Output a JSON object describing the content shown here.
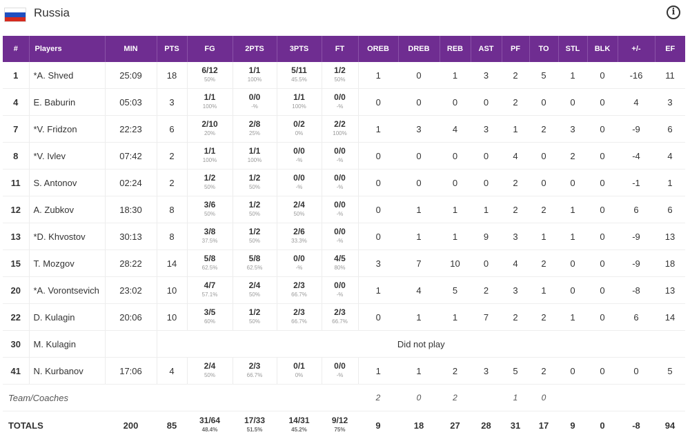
{
  "team": {
    "name": "Russia",
    "flag_colors": [
      "#ffffff",
      "#1f4fc1",
      "#d52b1e"
    ]
  },
  "info_icon": "info-icon",
  "accent_color": "#6f2d91",
  "headers": [
    "#",
    "Players",
    "MIN",
    "PTS",
    "FG",
    "2PTS",
    "3PTS",
    "FT",
    "OREB",
    "DREB",
    "REB",
    "AST",
    "PF",
    "TO",
    "STL",
    "BLK",
    "+/-",
    "EF"
  ],
  "players": [
    {
      "num": "1",
      "name": "*A. Shved",
      "min": "25:09",
      "pts": "18",
      "fg": "6/12",
      "fg_pct": "50%",
      "p2": "1/1",
      "p2_pct": "100%",
      "p3": "5/11",
      "p3_pct": "45.5%",
      "ft": "1/2",
      "ft_pct": "50%",
      "oreb": "1",
      "dreb": "0",
      "reb": "1",
      "ast": "3",
      "pf": "2",
      "to": "5",
      "stl": "1",
      "blk": "0",
      "pm": "-16",
      "ef": "11"
    },
    {
      "num": "4",
      "name": "E. Baburin",
      "min": "05:03",
      "pts": "3",
      "fg": "1/1",
      "fg_pct": "100%",
      "p2": "0/0",
      "p2_pct": "-%",
      "p3": "1/1",
      "p3_pct": "100%",
      "ft": "0/0",
      "ft_pct": "-%",
      "oreb": "0",
      "dreb": "0",
      "reb": "0",
      "ast": "0",
      "pf": "2",
      "to": "0",
      "stl": "0",
      "blk": "0",
      "pm": "4",
      "ef": "3"
    },
    {
      "num": "7",
      "name": "*V. Fridzon",
      "min": "22:23",
      "pts": "6",
      "fg": "2/10",
      "fg_pct": "20%",
      "p2": "2/8",
      "p2_pct": "25%",
      "p3": "0/2",
      "p3_pct": "0%",
      "ft": "2/2",
      "ft_pct": "100%",
      "oreb": "1",
      "dreb": "3",
      "reb": "4",
      "ast": "3",
      "pf": "1",
      "to": "2",
      "stl": "3",
      "blk": "0",
      "pm": "-9",
      "ef": "6"
    },
    {
      "num": "8",
      "name": "*V. Ivlev",
      "min": "07:42",
      "pts": "2",
      "fg": "1/1",
      "fg_pct": "100%",
      "p2": "1/1",
      "p2_pct": "100%",
      "p3": "0/0",
      "p3_pct": "-%",
      "ft": "0/0",
      "ft_pct": "-%",
      "oreb": "0",
      "dreb": "0",
      "reb": "0",
      "ast": "0",
      "pf": "4",
      "to": "0",
      "stl": "2",
      "blk": "0",
      "pm": "-4",
      "ef": "4"
    },
    {
      "num": "11",
      "name": "S. Antonov",
      "min": "02:24",
      "pts": "2",
      "fg": "1/2",
      "fg_pct": "50%",
      "p2": "1/2",
      "p2_pct": "50%",
      "p3": "0/0",
      "p3_pct": "-%",
      "ft": "0/0",
      "ft_pct": "-%",
      "oreb": "0",
      "dreb": "0",
      "reb": "0",
      "ast": "0",
      "pf": "2",
      "to": "0",
      "stl": "0",
      "blk": "0",
      "pm": "-1",
      "ef": "1"
    },
    {
      "num": "12",
      "name": "A. Zubkov",
      "min": "18:30",
      "pts": "8",
      "fg": "3/6",
      "fg_pct": "50%",
      "p2": "1/2",
      "p2_pct": "50%",
      "p3": "2/4",
      "p3_pct": "50%",
      "ft": "0/0",
      "ft_pct": "-%",
      "oreb": "0",
      "dreb": "1",
      "reb": "1",
      "ast": "1",
      "pf": "2",
      "to": "2",
      "stl": "1",
      "blk": "0",
      "pm": "6",
      "ef": "6"
    },
    {
      "num": "13",
      "name": "*D. Khvostov",
      "min": "30:13",
      "pts": "8",
      "fg": "3/8",
      "fg_pct": "37.5%",
      "p2": "1/2",
      "p2_pct": "50%",
      "p3": "2/6",
      "p3_pct": "33.3%",
      "ft": "0/0",
      "ft_pct": "-%",
      "oreb": "0",
      "dreb": "1",
      "reb": "1",
      "ast": "9",
      "pf": "3",
      "to": "1",
      "stl": "1",
      "blk": "0",
      "pm": "-9",
      "ef": "13"
    },
    {
      "num": "15",
      "name": "T. Mozgov",
      "min": "28:22",
      "pts": "14",
      "fg": "5/8",
      "fg_pct": "62.5%",
      "p2": "5/8",
      "p2_pct": "62.5%",
      "p3": "0/0",
      "p3_pct": "-%",
      "ft": "4/5",
      "ft_pct": "80%",
      "oreb": "3",
      "dreb": "7",
      "reb": "10",
      "ast": "0",
      "pf": "4",
      "to": "2",
      "stl": "0",
      "blk": "0",
      "pm": "-9",
      "ef": "18"
    },
    {
      "num": "20",
      "name": "*A. Vorontsevich",
      "min": "23:02",
      "pts": "10",
      "fg": "4/7",
      "fg_pct": "57.1%",
      "p2": "2/4",
      "p2_pct": "50%",
      "p3": "2/3",
      "p3_pct": "66.7%",
      "ft": "0/0",
      "ft_pct": "-%",
      "oreb": "1",
      "dreb": "4",
      "reb": "5",
      "ast": "2",
      "pf": "3",
      "to": "1",
      "stl": "0",
      "blk": "0",
      "pm": "-8",
      "ef": "13"
    },
    {
      "num": "22",
      "name": "D. Kulagin",
      "min": "20:06",
      "pts": "10",
      "fg": "3/5",
      "fg_pct": "60%",
      "p2": "1/2",
      "p2_pct": "50%",
      "p3": "2/3",
      "p3_pct": "66.7%",
      "ft": "2/3",
      "ft_pct": "66.7%",
      "oreb": "0",
      "dreb": "1",
      "reb": "1",
      "ast": "7",
      "pf": "2",
      "to": "2",
      "stl": "1",
      "blk": "0",
      "pm": "6",
      "ef": "14"
    },
    {
      "num": "30",
      "name": "M. Kulagin",
      "dnp": "Did not play"
    },
    {
      "num": "41",
      "name": "N. Kurbanov",
      "min": "17:06",
      "pts": "4",
      "fg": "2/4",
      "fg_pct": "50%",
      "p2": "2/3",
      "p2_pct": "66.7%",
      "p3": "0/1",
      "p3_pct": "0%",
      "ft": "0/0",
      "ft_pct": "-%",
      "oreb": "1",
      "dreb": "1",
      "reb": "2",
      "ast": "3",
      "pf": "5",
      "to": "2",
      "stl": "0",
      "blk": "0",
      "pm": "0",
      "ef": "5"
    }
  ],
  "team_coaches": {
    "label": "Team/Coaches",
    "oreb": "2",
    "dreb": "0",
    "reb": "2",
    "ast": "",
    "pf": "1",
    "to": "0"
  },
  "totals": {
    "label": "TOTALS",
    "min": "200",
    "pts": "85",
    "fg": "31/64",
    "fg_pct": "48.4%",
    "p2": "17/33",
    "p2_pct": "51.5%",
    "p3": "14/31",
    "p3_pct": "45.2%",
    "ft": "9/12",
    "ft_pct": "75%",
    "oreb": "9",
    "dreb": "18",
    "reb": "27",
    "ast": "28",
    "pf": "31",
    "to": "17",
    "stl": "9",
    "blk": "0",
    "pm": "-8",
    "ef": "94"
  }
}
